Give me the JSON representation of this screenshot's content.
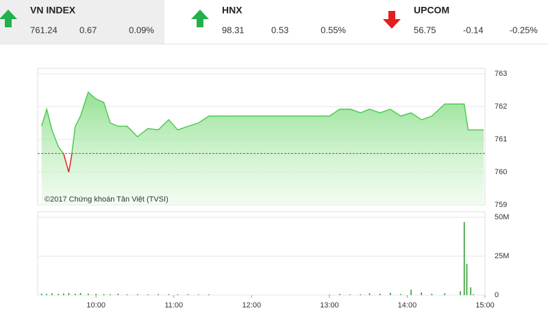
{
  "header": {
    "indices": [
      {
        "name": "VN INDEX",
        "value": "761.24",
        "change": "0.67",
        "percent": "0.09%",
        "direction": "up"
      },
      {
        "name": "HNX",
        "value": "98.31",
        "change": "0.53",
        "percent": "0.55%",
        "direction": "up"
      },
      {
        "name": "UPCOM",
        "value": "56.75",
        "change": "-0.14",
        "percent": "-0.25%",
        "direction": "down"
      }
    ]
  },
  "chart_data": [
    {
      "type": "area",
      "annotation": "©2017 Chứng khoán Tân Việt (TVSI)",
      "color": "#4fc94f",
      "down_color": "#e02020",
      "reference": 760.57,
      "reference_color": "#d23030",
      "x": [
        558,
        562,
        566,
        571,
        575,
        579,
        581,
        584,
        588,
        594,
        600,
        606,
        611,
        617,
        624,
        632,
        640,
        648,
        656,
        663,
        671,
        679,
        687,
        695,
        780,
        788,
        796,
        804,
        811,
        819,
        827,
        835,
        843,
        851,
        859,
        869,
        884,
        887,
        899
      ],
      "values": [
        761.4,
        761.92,
        761.29,
        760.77,
        760.56,
        760.0,
        760.46,
        761.4,
        761.71,
        762.44,
        762.23,
        762.13,
        761.5,
        761.4,
        761.4,
        761.08,
        761.33,
        761.29,
        761.6,
        761.29,
        761.4,
        761.5,
        761.71,
        761.71,
        761.71,
        761.92,
        761.92,
        761.81,
        761.92,
        761.81,
        761.92,
        761.71,
        761.81,
        761.6,
        761.71,
        762.08,
        762.08,
        761.29,
        761.29
      ],
      "xlim": [
        555,
        900
      ],
      "ylim": [
        759,
        763
      ],
      "yticks": [
        759,
        760,
        761,
        762,
        763
      ],
      "grid": true
    },
    {
      "type": "bar",
      "color": "#2e9e2e",
      "x": [
        558,
        562,
        566,
        571,
        575,
        579,
        584,
        588,
        594,
        600,
        606,
        611,
        617,
        624,
        632,
        640,
        648,
        656,
        663,
        671,
        679,
        687,
        780,
        788,
        796,
        804,
        811,
        819,
        827,
        835,
        843,
        851,
        859,
        869,
        881,
        884,
        886,
        889,
        891
      ],
      "values": [
        1,
        0.8,
        1.2,
        0.9,
        1.1,
        1.3,
        0.9,
        1.4,
        1,
        0.8,
        0.7,
        0.6,
        0.9,
        0.5,
        0.6,
        0.5,
        0.7,
        0.6,
        0.5,
        0.6,
        0.4,
        0.5,
        0.3,
        0.8,
        0.5,
        0.6,
        1.2,
        0.9,
        1.5,
        0.7,
        3.5,
        1.8,
        0.9,
        1.2,
        2.5,
        47,
        20,
        5,
        0.6
      ],
      "xlim": [
        555,
        900
      ],
      "ylim": [
        0,
        50
      ],
      "yticks": [
        0,
        {
          "value": 25,
          "label": "25M"
        },
        {
          "value": 50,
          "label": "50M"
        }
      ],
      "xticks": [
        {
          "value": 600,
          "label": "10:00"
        },
        {
          "value": 660,
          "label": "11:00"
        },
        {
          "value": 720,
          "label": "12:00"
        },
        {
          "value": 780,
          "label": "13:00"
        },
        {
          "value": 840,
          "label": "14:00"
        },
        {
          "value": 900,
          "label": "15:00"
        }
      ],
      "grid": true
    }
  ]
}
